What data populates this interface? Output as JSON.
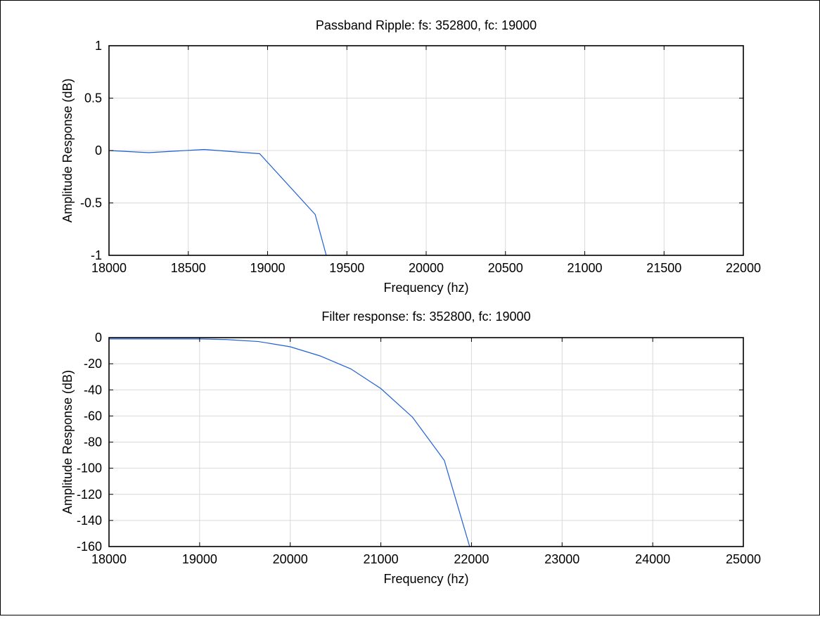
{
  "chart_data": [
    {
      "type": "line",
      "title": "Passband Ripple: fs: 352800, fc: 19000",
      "xlabel": "Frequency (hz)",
      "ylabel": "Amplitude Response (dB)",
      "xlim": [
        18000,
        22000
      ],
      "ylim": [
        -1,
        1
      ],
      "xticks": [
        18000,
        18500,
        19000,
        19500,
        20000,
        20500,
        21000,
        21500,
        22000
      ],
      "xtick_labels": [
        "18000",
        "18500",
        "19000",
        "19500",
        "20000",
        "20500",
        "21000",
        "21500",
        "22000"
      ],
      "yticks": [
        1,
        0.5,
        0,
        -0.5,
        -1
      ],
      "ytick_labels": [
        "1",
        "0.5",
        "0",
        "-0.5",
        "-1"
      ],
      "grid": true,
      "series": [
        {
          "color": "#1f5fd6",
          "x": [
            18000,
            18250,
            18600,
            18950,
            19300,
            19370
          ],
          "y": [
            0.0,
            -0.02,
            0.01,
            -0.03,
            -0.61,
            -1.0
          ]
        }
      ]
    },
    {
      "type": "line",
      "title": "Filter response: fs: 352800, fc: 19000",
      "xlabel": "Frequency (hz)",
      "ylabel": "Amplitude Response (dB)",
      "xlim": [
        18000,
        25000
      ],
      "ylim": [
        -160,
        0
      ],
      "xticks": [
        18000,
        19000,
        20000,
        21000,
        22000,
        23000,
        24000,
        25000
      ],
      "xtick_labels": [
        "18000",
        "19000",
        "20000",
        "21000",
        "22000",
        "23000",
        "24000",
        "25000"
      ],
      "yticks": [
        0,
        -20,
        -40,
        -60,
        -80,
        -100,
        -120,
        -140,
        -160
      ],
      "ytick_labels": [
        "0",
        "-20",
        "-40",
        "-60",
        "-80",
        "-100",
        "-120",
        "-140",
        "-160"
      ],
      "grid": true,
      "series": [
        {
          "color": "#1f5fd6",
          "x": [
            18000,
            18300,
            18650,
            19000,
            19300,
            19650,
            20000,
            20330,
            20670,
            21000,
            21350,
            21700,
            21980
          ],
          "y": [
            -1,
            -1,
            -1,
            -1,
            -1.5,
            -3,
            -7,
            -14,
            -24,
            -39,
            -61,
            -94,
            -160
          ]
        }
      ]
    }
  ]
}
